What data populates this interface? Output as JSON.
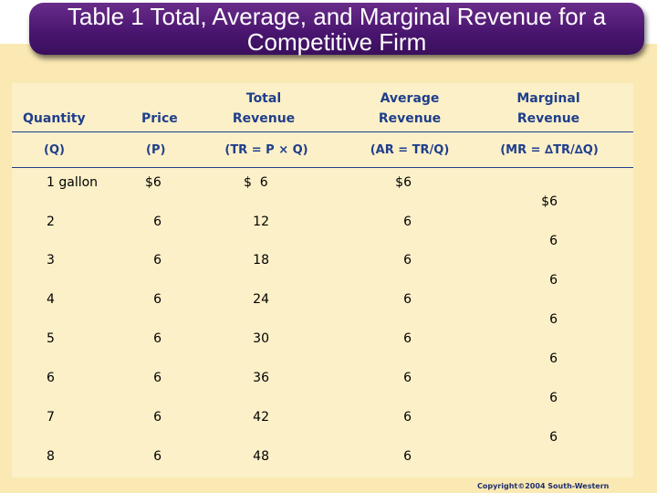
{
  "title": "Table 1 Total, Average, and Marginal Revenue for a Competitive Firm",
  "columns": [
    {
      "line1": "",
      "line2": "Quantity",
      "symbol": "(Q)"
    },
    {
      "line1": "",
      "line2": "Price",
      "symbol": "(P)"
    },
    {
      "line1": "Total",
      "line2": "Revenue",
      "symbol": "(TR = P × Q)"
    },
    {
      "line1": "Average",
      "line2": "Revenue",
      "symbol": "(AR = TR/Q)"
    },
    {
      "line1": "Marginal",
      "line2": "Revenue",
      "symbol": "(MR = ∆TR/∆Q)"
    }
  ],
  "rows": [
    {
      "q": "1 gallon",
      "p": "$6",
      "tr": "$  6",
      "ar": "$6"
    },
    {
      "q": "2",
      "p": "6",
      "tr": "12",
      "ar": "6"
    },
    {
      "q": "3",
      "p": "6",
      "tr": "18",
      "ar": "6"
    },
    {
      "q": "4",
      "p": "6",
      "tr": "24",
      "ar": "6"
    },
    {
      "q": "5",
      "p": "6",
      "tr": "30",
      "ar": "6"
    },
    {
      "q": "6",
      "p": "6",
      "tr": "36",
      "ar": "6"
    },
    {
      "q": "7",
      "p": "6",
      "tr": "42",
      "ar": "6"
    },
    {
      "q": "8",
      "p": "6",
      "tr": "48",
      "ar": "6"
    }
  ],
  "marginal": [
    "$6",
    "6",
    "6",
    "6",
    "6",
    "6",
    "6"
  ],
  "copyright": "Copyright©2004  South-Western"
}
